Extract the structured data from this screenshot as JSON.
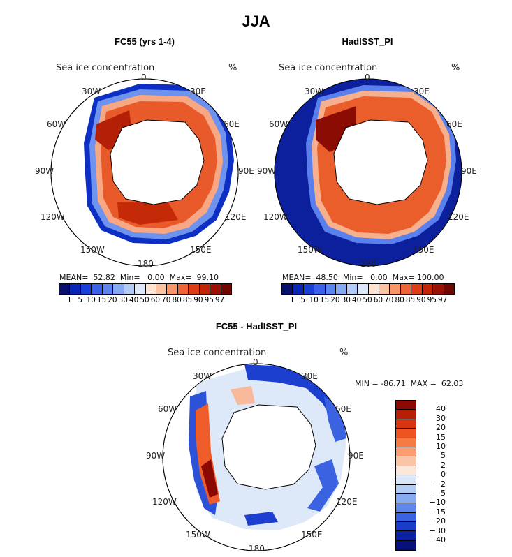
{
  "title": "JJA",
  "panels": [
    {
      "title": "FC55 (yrs 1-4)",
      "variable": "Sea ice concentration",
      "unit": "%",
      "stats": "MEAN=  52.82  Min=   0.00  Max=  99.10"
    },
    {
      "title": "HadISST_PI",
      "variable": "Sea ice concentration",
      "unit": "%",
      "stats": "MEAN=  48.50  Min=   0.00  Max= 100.00"
    },
    {
      "title": "FC55 - HadISST_PI",
      "variable": "Sea ice concentration",
      "unit": "%",
      "stats": "MIN = -86.71  MAX =  62.03"
    }
  ],
  "longitude_labels": {
    "n": "0",
    "ne": "30E",
    "e1": "60E",
    "e": "90E",
    "se1": "120E",
    "se": "150E",
    "s": "180",
    "sw": "150W",
    "sw1": "120W",
    "w": "90W",
    "nw1": "60W",
    "nw": "30W"
  },
  "colorbar_abs": {
    "labels": [
      "1",
      "5",
      "10",
      "15",
      "20",
      "30",
      "40",
      "50",
      "60",
      "70",
      "80",
      "85",
      "90",
      "95",
      "97"
    ],
    "colors": [
      "#08106e",
      "#0a24b4",
      "#1a3fd6",
      "#3a62e8",
      "#5c85f0",
      "#87a8f3",
      "#b3c9f6",
      "#dde8fb",
      "#fde3d2",
      "#fbc3a2",
      "#f8966a",
      "#ef6436",
      "#de3d14",
      "#c02506",
      "#981103",
      "#700802"
    ]
  },
  "colorbar_diff": {
    "labels": [
      "40",
      "30",
      "20",
      "15",
      "10",
      "5",
      "2",
      "0",
      "−2",
      "−5",
      "−10",
      "−15",
      "−20",
      "−30",
      "−40"
    ],
    "colors": [
      "#8a0a02",
      "#b81d05",
      "#d83510",
      "#ee5422",
      "#f77a45",
      "#fa9e72",
      "#fcc4a6",
      "#fde7da",
      "#d9e7f8",
      "#b3cdf4",
      "#87aaf0",
      "#5f87eb",
      "#3a62e1",
      "#1a3cc9",
      "#0a22a3",
      "#07107a"
    ]
  }
}
